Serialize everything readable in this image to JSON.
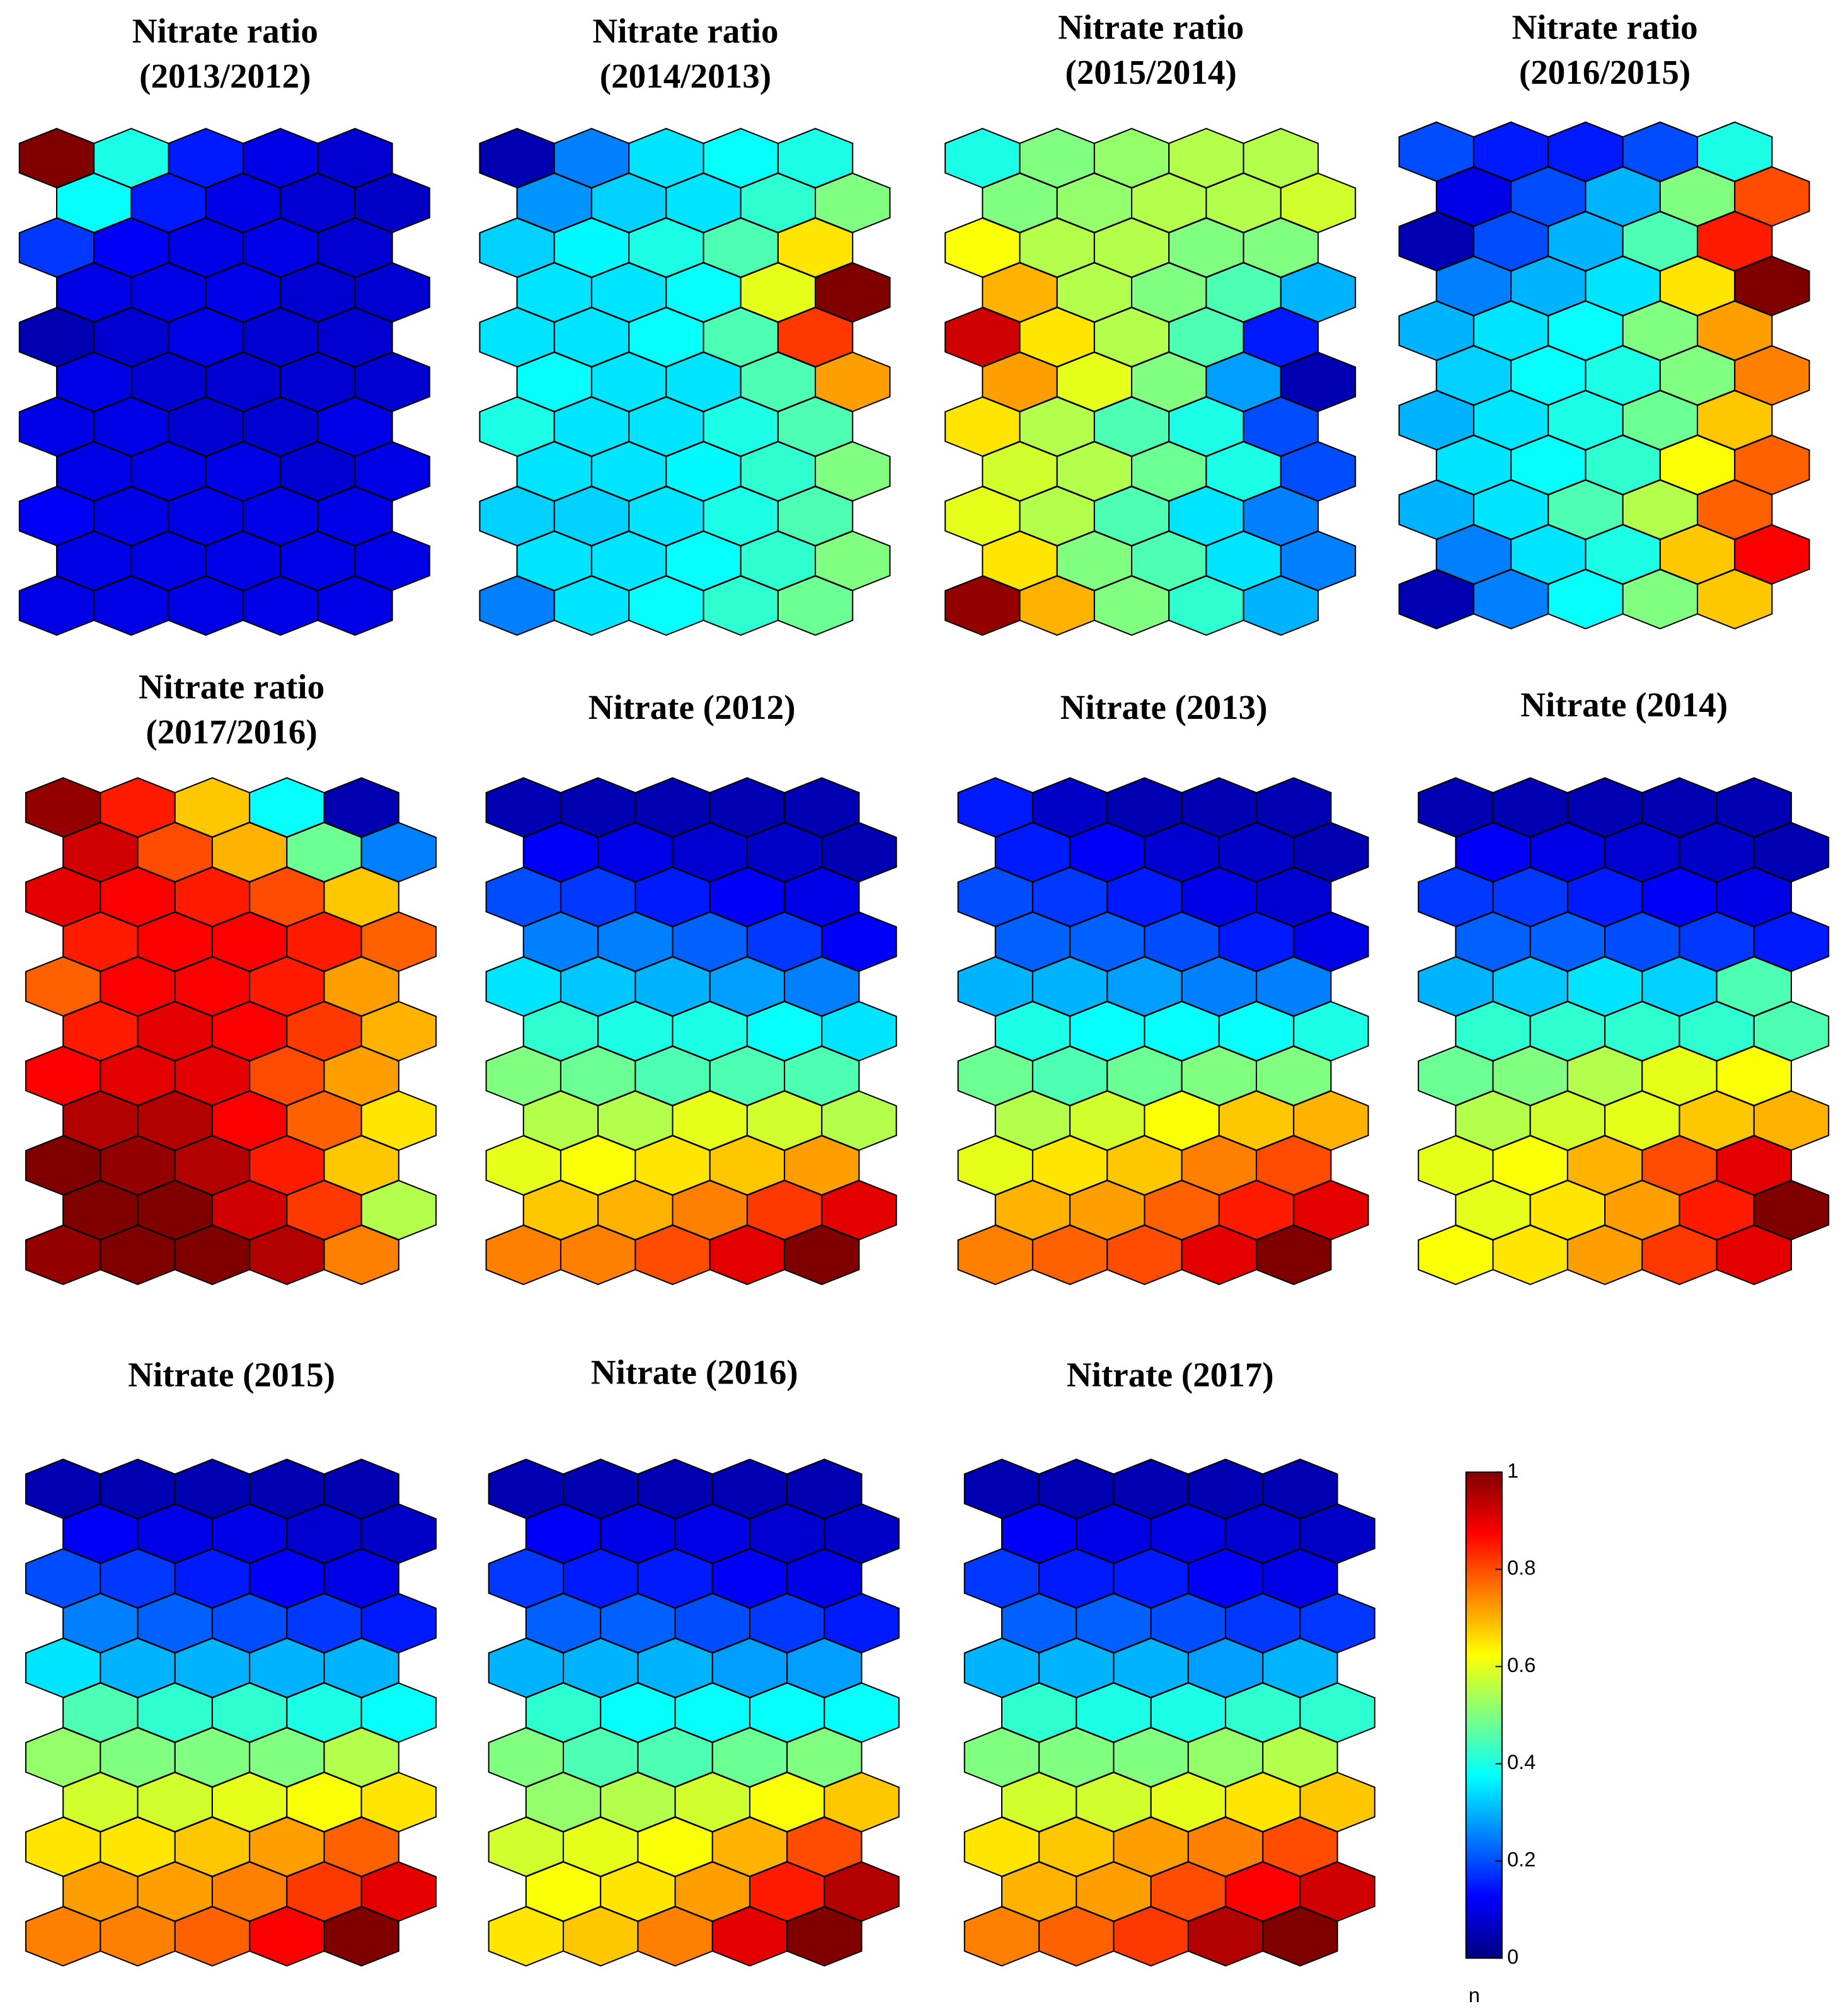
{
  "chart_data": [
    {
      "type": "hexmap",
      "title": [
        "Nitrate ratio",
        "(2013/2012)"
      ],
      "values": [
        [
          1.0,
          0.4,
          0.15,
          0.1,
          0.08
        ],
        [
          0.38,
          0.15,
          0.1,
          0.08,
          0.07
        ],
        [
          0.18,
          0.12,
          0.1,
          0.1,
          0.08
        ],
        [
          0.1,
          0.1,
          0.1,
          0.08,
          0.08
        ],
        [
          0.05,
          0.08,
          0.1,
          0.08,
          0.08
        ],
        [
          0.1,
          0.08,
          0.08,
          0.08,
          0.08
        ],
        [
          0.1,
          0.1,
          0.08,
          0.08,
          0.1
        ],
        [
          0.1,
          0.1,
          0.1,
          0.08,
          0.1
        ],
        [
          0.12,
          0.1,
          0.1,
          0.1,
          0.1
        ],
        [
          0.1,
          0.1,
          0.1,
          0.1,
          0.1
        ],
        [
          0.1,
          0.1,
          0.1,
          0.1,
          0.1
        ]
      ]
    },
    {
      "type": "hexmap",
      "title": [
        "Nitrate ratio",
        "(2014/2013)"
      ],
      "values": [
        [
          0.05,
          0.25,
          0.35,
          0.38,
          0.4
        ],
        [
          0.27,
          0.33,
          0.35,
          0.42,
          0.5
        ],
        [
          0.33,
          0.37,
          0.4,
          0.45,
          0.65
        ],
        [
          0.35,
          0.35,
          0.38,
          0.6,
          1.0
        ],
        [
          0.35,
          0.35,
          0.38,
          0.45,
          0.82
        ],
        [
          0.38,
          0.35,
          0.35,
          0.45,
          0.72
        ],
        [
          0.4,
          0.35,
          0.35,
          0.4,
          0.45
        ],
        [
          0.35,
          0.35,
          0.37,
          0.42,
          0.5
        ],
        [
          0.33,
          0.33,
          0.35,
          0.4,
          0.45
        ],
        [
          0.35,
          0.35,
          0.38,
          0.42,
          0.5
        ],
        [
          0.25,
          0.35,
          0.38,
          0.42,
          0.48
        ]
      ]
    },
    {
      "type": "hexmap",
      "title": [
        "Nitrate ratio",
        "(2015/2014)"
      ],
      "values": [
        [
          0.4,
          0.5,
          0.52,
          0.55,
          0.55
        ],
        [
          0.5,
          0.52,
          0.55,
          0.55,
          0.58
        ],
        [
          0.62,
          0.55,
          0.55,
          0.5,
          0.5
        ],
        [
          0.7,
          0.55,
          0.5,
          0.45,
          0.3
        ],
        [
          0.92,
          0.65,
          0.55,
          0.45,
          0.15
        ],
        [
          0.72,
          0.6,
          0.5,
          0.28,
          0.05
        ],
        [
          0.65,
          0.55,
          0.45,
          0.4,
          0.2
        ],
        [
          0.58,
          0.55,
          0.48,
          0.4,
          0.2
        ],
        [
          0.6,
          0.55,
          0.45,
          0.35,
          0.25
        ],
        [
          0.65,
          0.5,
          0.45,
          0.35,
          0.25
        ],
        [
          0.98,
          0.7,
          0.5,
          0.42,
          0.3
        ]
      ]
    },
    {
      "type": "hexmap",
      "title": [
        "Nitrate ratio",
        "(2016/2015)"
      ],
      "values": [
        [
          0.2,
          0.15,
          0.15,
          0.2,
          0.4
        ],
        [
          0.1,
          0.2,
          0.3,
          0.5,
          0.8
        ],
        [
          0.05,
          0.2,
          0.3,
          0.45,
          0.85
        ],
        [
          0.25,
          0.3,
          0.35,
          0.65,
          1.0
        ],
        [
          0.3,
          0.35,
          0.38,
          0.5,
          0.72
        ],
        [
          0.33,
          0.38,
          0.4,
          0.5,
          0.75
        ],
        [
          0.3,
          0.35,
          0.4,
          0.48,
          0.68
        ],
        [
          0.35,
          0.38,
          0.42,
          0.62,
          0.78
        ],
        [
          0.3,
          0.35,
          0.45,
          0.55,
          0.78
        ],
        [
          0.25,
          0.35,
          0.4,
          0.68,
          0.88
        ],
        [
          0.05,
          0.25,
          0.38,
          0.5,
          0.68
        ]
      ]
    },
    {
      "type": "hexmap",
      "title": [
        "Nitrate ratio",
        "(2017/2016)"
      ],
      "values": [
        [
          0.98,
          0.85,
          0.68,
          0.38,
          0.05
        ],
        [
          0.92,
          0.8,
          0.7,
          0.48,
          0.25
        ],
        [
          0.9,
          0.88,
          0.85,
          0.8,
          0.68
        ],
        [
          0.85,
          0.88,
          0.88,
          0.85,
          0.78
        ],
        [
          0.78,
          0.88,
          0.88,
          0.85,
          0.72
        ],
        [
          0.85,
          0.9,
          0.88,
          0.82,
          0.7
        ],
        [
          0.88,
          0.9,
          0.9,
          0.8,
          0.72
        ],
        [
          0.95,
          0.95,
          0.88,
          0.78,
          0.65
        ],
        [
          1.0,
          0.98,
          0.95,
          0.85,
          0.68
        ],
        [
          1.0,
          1.0,
          0.92,
          0.82,
          0.55
        ],
        [
          0.98,
          1.0,
          1.0,
          0.95,
          0.75
        ]
      ]
    },
    {
      "type": "hexmap",
      "title": [
        "Nitrate (2012)"
      ],
      "values": [
        [
          0.05,
          0.05,
          0.05,
          0.05,
          0.05
        ],
        [
          0.12,
          0.1,
          0.08,
          0.07,
          0.05
        ],
        [
          0.2,
          0.18,
          0.15,
          0.12,
          0.1
        ],
        [
          0.25,
          0.25,
          0.22,
          0.18,
          0.12
        ],
        [
          0.35,
          0.32,
          0.3,
          0.28,
          0.25
        ],
        [
          0.42,
          0.4,
          0.4,
          0.38,
          0.35
        ],
        [
          0.5,
          0.48,
          0.45,
          0.45,
          0.45
        ],
        [
          0.55,
          0.55,
          0.6,
          0.58,
          0.55
        ],
        [
          0.6,
          0.62,
          0.65,
          0.68,
          0.72
        ],
        [
          0.68,
          0.7,
          0.75,
          0.82,
          0.9
        ],
        [
          0.75,
          0.75,
          0.8,
          0.9,
          1.0
        ]
      ]
    },
    {
      "type": "hexmap",
      "title": [
        "Nitrate (2013)"
      ],
      "values": [
        [
          0.15,
          0.07,
          0.05,
          0.05,
          0.05
        ],
        [
          0.15,
          0.12,
          0.08,
          0.07,
          0.05
        ],
        [
          0.2,
          0.18,
          0.15,
          0.1,
          0.08
        ],
        [
          0.22,
          0.22,
          0.2,
          0.15,
          0.1
        ],
        [
          0.3,
          0.3,
          0.28,
          0.25,
          0.25
        ],
        [
          0.4,
          0.38,
          0.38,
          0.38,
          0.4
        ],
        [
          0.48,
          0.45,
          0.48,
          0.5,
          0.5
        ],
        [
          0.55,
          0.58,
          0.62,
          0.68,
          0.7
        ],
        [
          0.6,
          0.65,
          0.68,
          0.75,
          0.8
        ],
        [
          0.7,
          0.72,
          0.78,
          0.85,
          0.9
        ],
        [
          0.75,
          0.78,
          0.8,
          0.9,
          1.0
        ]
      ]
    },
    {
      "type": "hexmap",
      "title": [
        "Nitrate (2014)"
      ],
      "values": [
        [
          0.05,
          0.05,
          0.05,
          0.05,
          0.05
        ],
        [
          0.12,
          0.1,
          0.08,
          0.07,
          0.05
        ],
        [
          0.18,
          0.18,
          0.15,
          0.12,
          0.1
        ],
        [
          0.22,
          0.22,
          0.2,
          0.18,
          0.15
        ],
        [
          0.3,
          0.32,
          0.35,
          0.33,
          0.45
        ],
        [
          0.42,
          0.42,
          0.42,
          0.42,
          0.45
        ],
        [
          0.48,
          0.5,
          0.55,
          0.6,
          0.62
        ],
        [
          0.55,
          0.58,
          0.6,
          0.68,
          0.7
        ],
        [
          0.6,
          0.62,
          0.7,
          0.8,
          0.9
        ],
        [
          0.6,
          0.65,
          0.72,
          0.85,
          1.0
        ],
        [
          0.62,
          0.65,
          0.72,
          0.82,
          0.9
        ]
      ]
    },
    {
      "type": "hexmap",
      "title": [
        "Nitrate (2015)"
      ],
      "values": [
        [
          0.05,
          0.05,
          0.05,
          0.05,
          0.05
        ],
        [
          0.12,
          0.1,
          0.1,
          0.08,
          0.07
        ],
        [
          0.2,
          0.18,
          0.15,
          0.12,
          0.1
        ],
        [
          0.25,
          0.22,
          0.2,
          0.18,
          0.15
        ],
        [
          0.35,
          0.3,
          0.3,
          0.3,
          0.3
        ],
        [
          0.45,
          0.42,
          0.42,
          0.4,
          0.38
        ],
        [
          0.52,
          0.5,
          0.5,
          0.5,
          0.55
        ],
        [
          0.58,
          0.58,
          0.6,
          0.62,
          0.65
        ],
        [
          0.65,
          0.65,
          0.68,
          0.72,
          0.78
        ],
        [
          0.72,
          0.72,
          0.75,
          0.82,
          0.9
        ],
        [
          0.75,
          0.75,
          0.78,
          0.88,
          1.0
        ]
      ]
    },
    {
      "type": "hexmap",
      "title": [
        "Nitrate (2016)"
      ],
      "values": [
        [
          0.05,
          0.05,
          0.05,
          0.05,
          0.05
        ],
        [
          0.12,
          0.1,
          0.1,
          0.08,
          0.07
        ],
        [
          0.18,
          0.15,
          0.15,
          0.12,
          0.1
        ],
        [
          0.22,
          0.22,
          0.2,
          0.18,
          0.15
        ],
        [
          0.3,
          0.3,
          0.3,
          0.28,
          0.28
        ],
        [
          0.42,
          0.38,
          0.38,
          0.38,
          0.38
        ],
        [
          0.5,
          0.45,
          0.45,
          0.48,
          0.5
        ],
        [
          0.52,
          0.55,
          0.58,
          0.62,
          0.68
        ],
        [
          0.58,
          0.6,
          0.62,
          0.7,
          0.8
        ],
        [
          0.62,
          0.65,
          0.72,
          0.85,
          0.95
        ],
        [
          0.65,
          0.68,
          0.75,
          0.9,
          1.0
        ]
      ]
    },
    {
      "type": "hexmap",
      "title": [
        "Nitrate (2017)"
      ],
      "values": [
        [
          0.05,
          0.05,
          0.05,
          0.05,
          0.05
        ],
        [
          0.12,
          0.1,
          0.1,
          0.08,
          0.07
        ],
        [
          0.18,
          0.15,
          0.15,
          0.12,
          0.1
        ],
        [
          0.22,
          0.22,
          0.2,
          0.18,
          0.18
        ],
        [
          0.3,
          0.3,
          0.3,
          0.28,
          0.3
        ],
        [
          0.42,
          0.4,
          0.4,
          0.42,
          0.42
        ],
        [
          0.5,
          0.5,
          0.5,
          0.52,
          0.55
        ],
        [
          0.58,
          0.58,
          0.6,
          0.65,
          0.68
        ],
        [
          0.65,
          0.68,
          0.72,
          0.75,
          0.8
        ],
        [
          0.7,
          0.72,
          0.8,
          0.88,
          0.92
        ],
        [
          0.75,
          0.78,
          0.82,
          0.95,
          1.0
        ]
      ]
    }
  ],
  "colorbar": {
    "lim": [
      0,
      1
    ],
    "ticks": [
      0,
      0.2,
      0.4,
      0.6,
      0.8,
      1
    ],
    "label": "n"
  }
}
